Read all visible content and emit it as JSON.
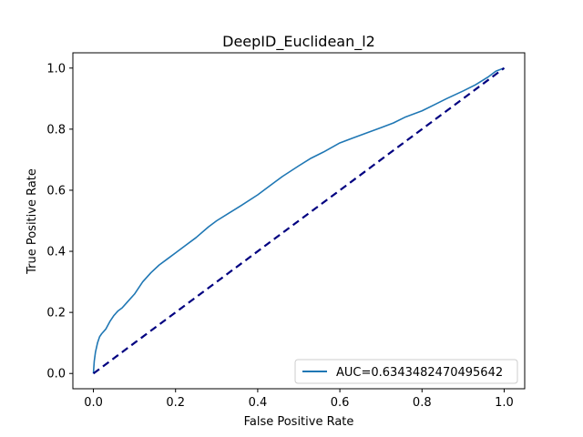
{
  "chart_data": {
    "type": "line",
    "title": "DeepID_Euclidean_l2",
    "xlabel": "False Positive Rate",
    "ylabel": "True Positive Rate",
    "xlim": [
      -0.05,
      1.05
    ],
    "ylim": [
      -0.05,
      1.05
    ],
    "xticks": [
      0.0,
      0.2,
      0.4,
      0.6,
      0.8,
      1.0
    ],
    "xtick_labels": [
      "0.0",
      "0.2",
      "0.4",
      "0.6",
      "0.8",
      "1.0"
    ],
    "yticks": [
      0.0,
      0.2,
      0.4,
      0.6,
      0.8,
      1.0
    ],
    "ytick_labels": [
      "0.0",
      "0.2",
      "0.4",
      "0.6",
      "0.8",
      "1.0"
    ],
    "grid": false,
    "legend_position": "lower-right",
    "series": [
      {
        "name": "AUC=0.6343482470495642",
        "color": "#1f77b4",
        "style": "solid",
        "x": [
          0.0,
          0.002,
          0.005,
          0.01,
          0.015,
          0.02,
          0.03,
          0.04,
          0.05,
          0.06,
          0.07,
          0.08,
          0.1,
          0.12,
          0.14,
          0.16,
          0.18,
          0.2,
          0.22,
          0.25,
          0.28,
          0.3,
          0.33,
          0.36,
          0.4,
          0.43,
          0.46,
          0.5,
          0.53,
          0.56,
          0.6,
          0.63,
          0.66,
          0.7,
          0.73,
          0.76,
          0.8,
          0.83,
          0.86,
          0.9,
          0.93,
          0.96,
          0.98,
          1.0
        ],
        "y": [
          0.0,
          0.04,
          0.07,
          0.1,
          0.12,
          0.13,
          0.145,
          0.17,
          0.19,
          0.205,
          0.215,
          0.23,
          0.26,
          0.3,
          0.33,
          0.355,
          0.375,
          0.395,
          0.415,
          0.445,
          0.48,
          0.5,
          0.525,
          0.55,
          0.585,
          0.615,
          0.645,
          0.68,
          0.705,
          0.725,
          0.755,
          0.77,
          0.785,
          0.805,
          0.82,
          0.84,
          0.86,
          0.88,
          0.9,
          0.925,
          0.945,
          0.97,
          0.99,
          1.0
        ]
      },
      {
        "name": "",
        "color": "#000080",
        "style": "dashed",
        "x": [
          0.0,
          1.0
        ],
        "y": [
          0.0,
          1.0
        ]
      }
    ]
  }
}
